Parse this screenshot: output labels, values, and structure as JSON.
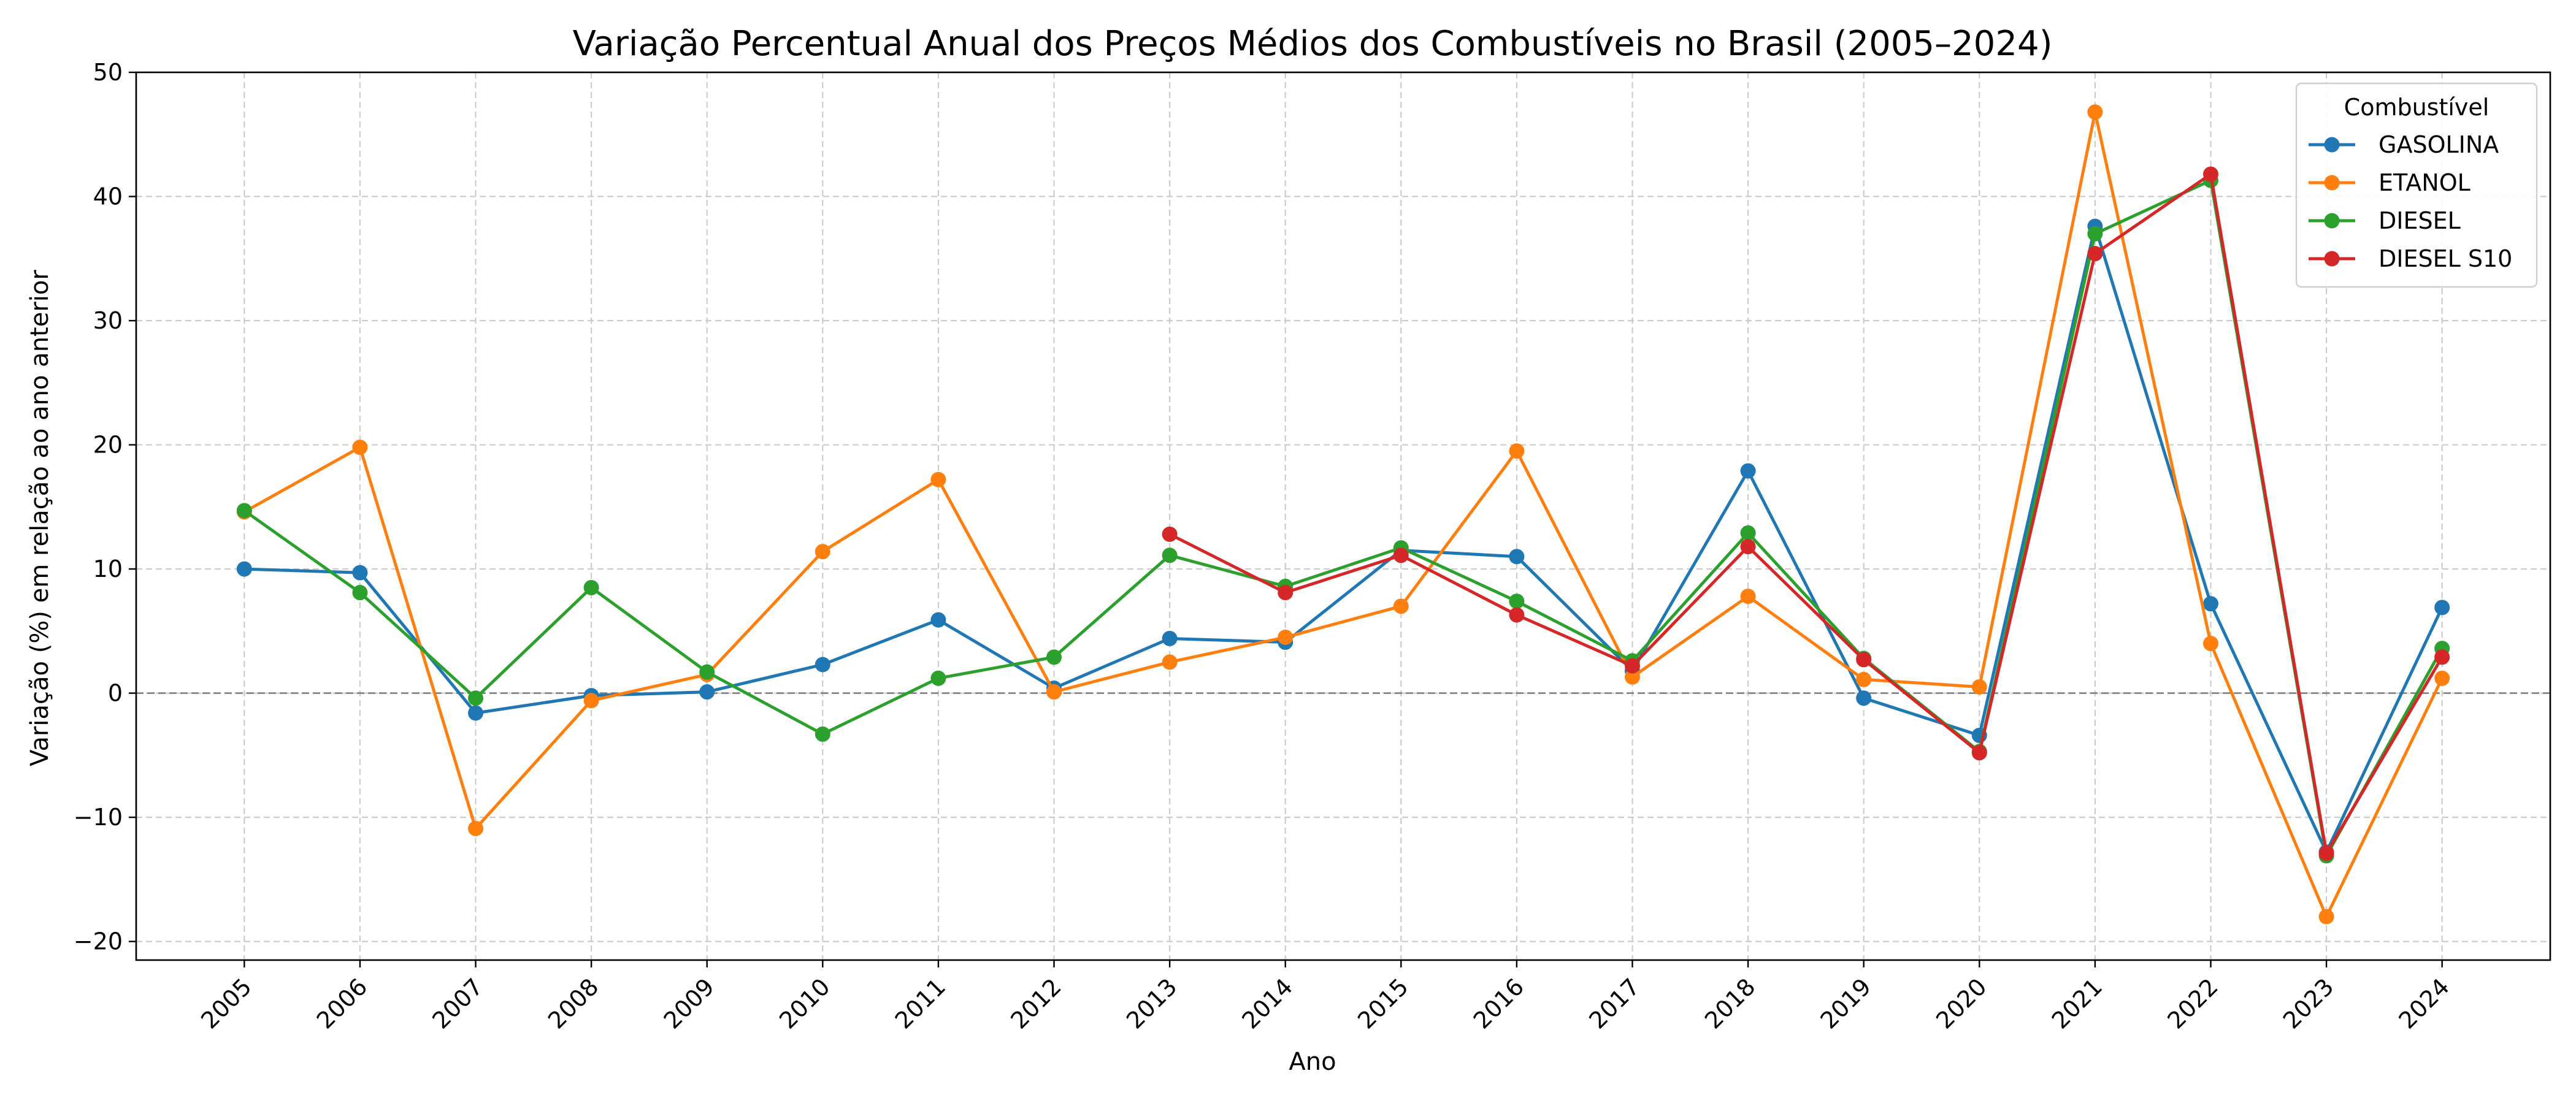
{
  "chart_data": {
    "type": "line",
    "title": "Variação Percentual Anual dos Preços Médios dos Combustíveis no Brasil (2005–2024)",
    "xlabel": "Ano",
    "ylabel": "Variação (%) em relação ao ano anterior",
    "categories": [
      "2005",
      "2006",
      "2007",
      "2008",
      "2009",
      "2010",
      "2011",
      "2012",
      "2013",
      "2014",
      "2015",
      "2016",
      "2017",
      "2018",
      "2019",
      "2020",
      "2021",
      "2022",
      "2023",
      "2024"
    ],
    "ylim": [
      -21.5,
      50
    ],
    "yticks": [
      -20,
      -10,
      0,
      10,
      20,
      30,
      40,
      50
    ],
    "ytick_labels": [
      "−20",
      "−10",
      "0",
      "10",
      "20",
      "30",
      "40",
      "50"
    ],
    "grid": true,
    "zero_line": true,
    "legend": {
      "title": "Combustível",
      "placement": "top-right"
    },
    "series": [
      {
        "name": "GASOLINA",
        "color": "#1f77b4",
        "values": [
          10.0,
          9.7,
          -1.6,
          -0.2,
          0.1,
          2.3,
          5.9,
          0.4,
          4.4,
          4.1,
          11.5,
          11.0,
          1.8,
          17.9,
          -0.4,
          -3.4,
          37.6,
          7.2,
          -12.8,
          6.9
        ]
      },
      {
        "name": "ETANOL",
        "color": "#ff7f0e",
        "values": [
          14.6,
          19.8,
          -10.9,
          -0.6,
          1.5,
          11.4,
          17.2,
          0.1,
          2.5,
          4.5,
          7.0,
          19.5,
          1.3,
          7.8,
          1.1,
          0.5,
          46.8,
          4.0,
          -18.0,
          1.2
        ]
      },
      {
        "name": "DIESEL",
        "color": "#2ca02c",
        "values": [
          14.7,
          8.1,
          -0.4,
          8.5,
          1.7,
          -3.3,
          1.2,
          2.9,
          11.1,
          8.6,
          11.7,
          7.4,
          2.6,
          12.9,
          2.8,
          -4.7,
          37.0,
          41.3,
          -13.1,
          3.6
        ]
      },
      {
        "name": "DIESEL S10",
        "color": "#d62728",
        "values": [
          null,
          null,
          null,
          null,
          null,
          null,
          null,
          null,
          12.8,
          8.1,
          11.1,
          6.3,
          2.2,
          11.8,
          2.7,
          -4.8,
          35.4,
          41.8,
          -12.9,
          2.9
        ]
      }
    ]
  }
}
